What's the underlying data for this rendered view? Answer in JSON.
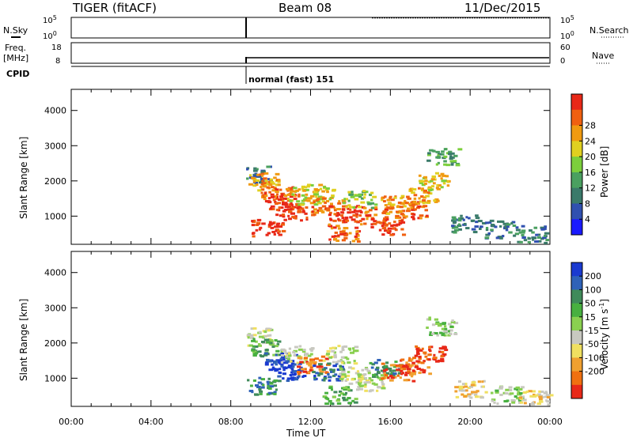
{
  "header": {
    "station": "TIGER (fitACF)",
    "beam": "Beam 08",
    "date": "11/Dec/2015"
  },
  "panels": {
    "nsky": {
      "label": "N.Sky",
      "left_ticks": [
        "10^5",
        "10^0"
      ],
      "right_ticks": [
        "10^5",
        "10^0"
      ],
      "right_label": "N.Search"
    },
    "freq": {
      "label_line1": "Freq.",
      "label_line2": "[MHz]",
      "left_ticks": [
        "18",
        "8"
      ],
      "right_ticks": [
        "60",
        "0"
      ],
      "right_label": "Nave"
    },
    "cpid": {
      "label": "CPID",
      "text": "normal (fast) 151"
    }
  },
  "chart_data": [
    {
      "type": "heatmap",
      "name": "power",
      "ylabel": "Slant Range [km]",
      "xlabel": "",
      "yticks": [
        "1000",
        "2000",
        "3000",
        "4000"
      ],
      "ylim": [
        200,
        4600
      ],
      "xlim": [
        0,
        24
      ],
      "colorbar_label": "Power [dB]",
      "colorbar_ticks": [
        "4",
        "8",
        "12",
        "16",
        "20",
        "24",
        "28"
      ],
      "colorbar_colors": [
        "#1a1aff",
        "#3050b0",
        "#3a7a6a",
        "#4aa060",
        "#7ccf3c",
        "#e0d020",
        "#f09a10",
        "#f06010",
        "#e82818"
      ],
      "data_start_hour": 8.75,
      "blobs": [
        {
          "t": 9.2,
          "r": 2200,
          "c": 2
        },
        {
          "t": 9.6,
          "r": 2000,
          "c": 6
        },
        {
          "t": 10.3,
          "r": 1700,
          "c": 7
        },
        {
          "t": 10.6,
          "r": 1400,
          "c": 8
        },
        {
          "t": 11.0,
          "r": 1150,
          "c": 8
        },
        {
          "t": 11.6,
          "r": 1600,
          "c": 5
        },
        {
          "t": 12.3,
          "r": 1700,
          "c": 5
        },
        {
          "t": 12.8,
          "r": 1300,
          "c": 7
        },
        {
          "t": 13.5,
          "r": 1100,
          "c": 8
        },
        {
          "t": 14.4,
          "r": 1500,
          "c": 4
        },
        {
          "t": 15.2,
          "r": 1050,
          "c": 7
        },
        {
          "t": 15.8,
          "r": 750,
          "c": 8
        },
        {
          "t": 16.3,
          "r": 1350,
          "c": 6
        },
        {
          "t": 17.0,
          "r": 1200,
          "c": 7
        },
        {
          "t": 17.6,
          "r": 1600,
          "c": 6
        },
        {
          "t": 18.2,
          "r": 2000,
          "c": 5
        },
        {
          "t": 18.6,
          "r": 2700,
          "c": 3
        },
        {
          "t": 13.6,
          "r": 550,
          "c": 7
        },
        {
          "t": 9.8,
          "r": 700,
          "c": 8
        },
        {
          "t": 19.8,
          "r": 800,
          "c": 2
        },
        {
          "t": 21.5,
          "r": 650,
          "c": 2
        },
        {
          "t": 23.0,
          "r": 500,
          "c": 2
        }
      ]
    },
    {
      "type": "heatmap",
      "name": "velocity",
      "ylabel": "Slant Range [km]",
      "xlabel": "Time UT",
      "yticks": [
        "1000",
        "2000",
        "3000",
        "4000"
      ],
      "ylim": [
        200,
        4600
      ],
      "xlim": [
        0,
        24
      ],
      "xticks": [
        "00:00",
        "04:00",
        "08:00",
        "12:00",
        "16:00",
        "20:00",
        "00:00"
      ],
      "colorbar_label": "Velocity [m s",
      "colorbar_label_sup": "-1",
      "colorbar_label_end": "]",
      "colorbar_ticks": [
        "200",
        "100",
        "50",
        "15",
        "-15",
        "-50",
        "-100",
        "-200"
      ],
      "colorbar_colors": [
        "#1a3ad0",
        "#2f62b8",
        "#3f8a5a",
        "#48b040",
        "#8ad050",
        "#c8c8c0",
        "#f0e060",
        "#f0a030",
        "#f07010",
        "#e82818"
      ],
      "data_start_hour": 8.75,
      "blobs": [
        {
          "t": 9.3,
          "r": 2200,
          "c": 5
        },
        {
          "t": 9.8,
          "r": 1900,
          "c": 3
        },
        {
          "t": 10.4,
          "r": 1500,
          "c": 0
        },
        {
          "t": 10.9,
          "r": 1200,
          "c": 0
        },
        {
          "t": 11.3,
          "r": 1700,
          "c": 5
        },
        {
          "t": 12.0,
          "r": 1400,
          "c": 8
        },
        {
          "t": 12.8,
          "r": 1200,
          "c": 1
        },
        {
          "t": 13.4,
          "r": 1700,
          "c": 5
        },
        {
          "t": 14.2,
          "r": 1100,
          "c": 5
        },
        {
          "t": 15.0,
          "r": 900,
          "c": 5
        },
        {
          "t": 15.7,
          "r": 1300,
          "c": 2
        },
        {
          "t": 16.3,
          "r": 1200,
          "c": 8
        },
        {
          "t": 17.2,
          "r": 1400,
          "c": 8
        },
        {
          "t": 17.9,
          "r": 1700,
          "c": 9
        },
        {
          "t": 18.5,
          "r": 2500,
          "c": 4
        },
        {
          "t": 9.6,
          "r": 800,
          "c": 2
        },
        {
          "t": 13.4,
          "r": 550,
          "c": 3
        },
        {
          "t": 20.0,
          "r": 700,
          "c": 6
        },
        {
          "t": 21.8,
          "r": 550,
          "c": 4
        },
        {
          "t": 23.2,
          "r": 450,
          "c": 6
        }
      ]
    }
  ]
}
